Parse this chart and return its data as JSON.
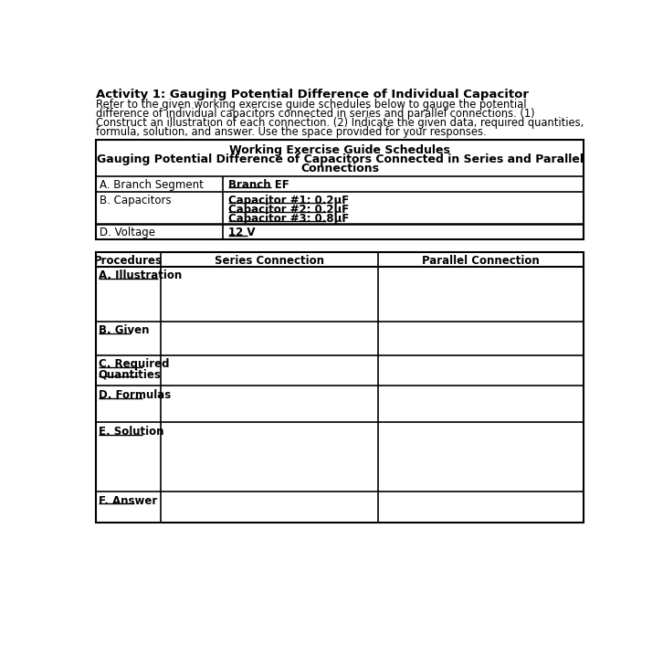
{
  "title": "Activity 1: Gauging Potential Difference of Individual Capacitor",
  "intro_lines": [
    "Refer to the given working exercise guide schedules below to gauge the potential",
    "difference of individual capacitors connected in series and parallel connections. (1)",
    "Construct an illustration of each connection. (2) Indicate the given data, required quantities,",
    "formula, solution, and answer. Use the space provided for your responses."
  ],
  "table1_header_line1": "Working Exercise Guide Schedules",
  "table1_header_line2": "Gauging Potential Difference of Capacitors Connected in Series and Parallel",
  "table1_header_line3": "Connections",
  "branch_segment_label": "A. Branch Segment",
  "branch_segment_value": "Branch EF",
  "capacitors_label": "B. Capacitors",
  "capacitors": [
    "Capacitor #1: 0.2μF",
    "Capacitor #2: 0.2μF",
    "Capacitor #3: 0.8μF"
  ],
  "voltage_label": "D. Voltage",
  "voltage_value": "12 V",
  "table2_headers": [
    "Procedures",
    "Series Connection",
    "Parallel Connection"
  ],
  "table2_row_labels": [
    [
      "A. Illustration"
    ],
    [
      "B. Given"
    ],
    [
      "C. Required",
      "Quantities"
    ],
    [
      "D. Formulas"
    ],
    [
      "E. Solution"
    ],
    [
      "F. Answer"
    ]
  ],
  "bg_color": "#ffffff"
}
